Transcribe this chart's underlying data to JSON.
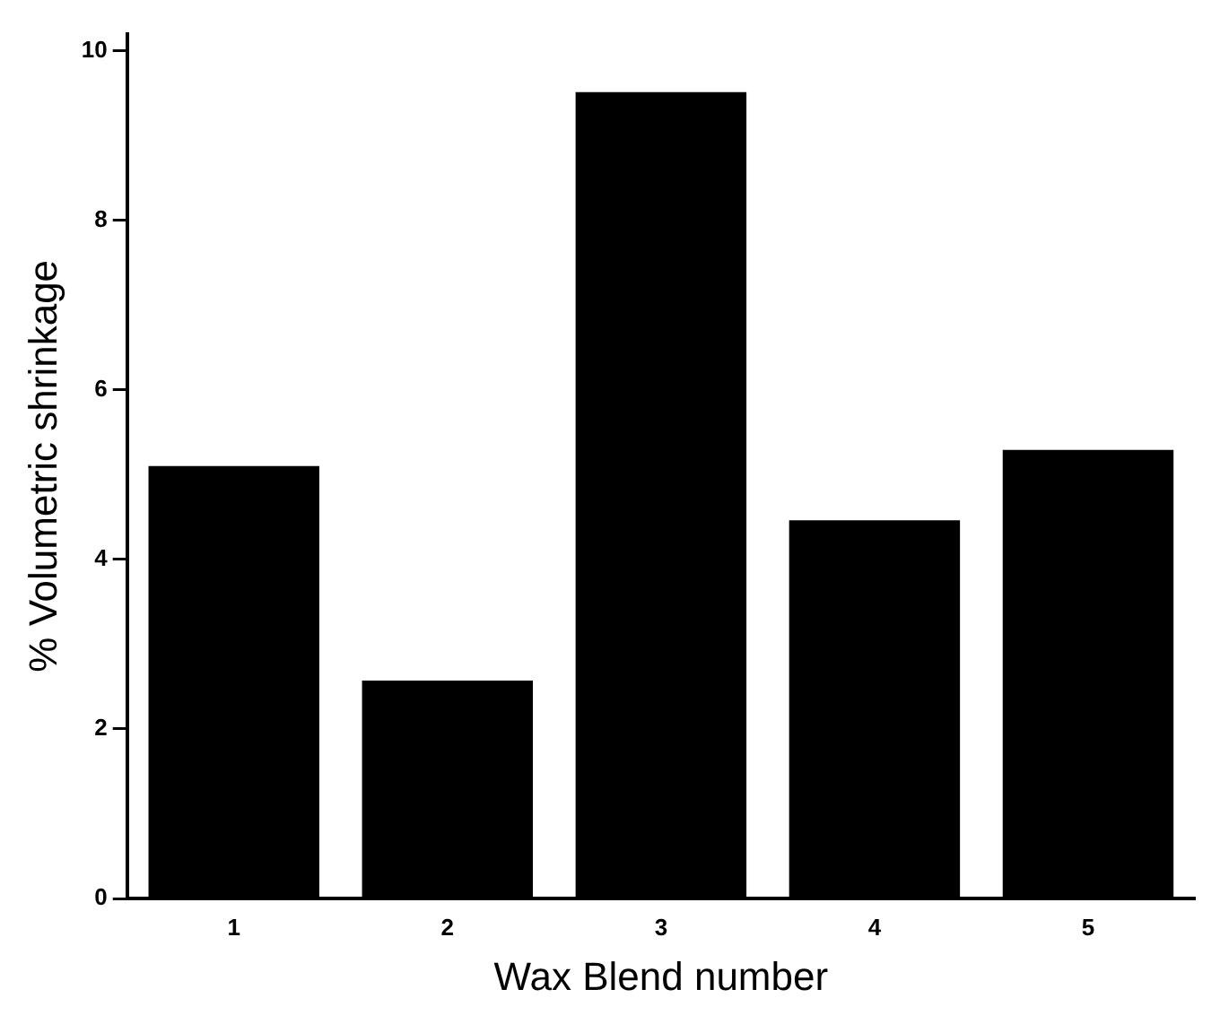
{
  "chart_data": {
    "type": "bar",
    "xlabel": "Wax Blend number",
    "ylabel": "% Volumetric shrinkage",
    "categories": [
      "1",
      "2",
      "3",
      "4",
      "5"
    ],
    "values": [
      5.1,
      2.57,
      9.51,
      4.46,
      5.29
    ],
    "color": "#000000",
    "ylim": [
      0,
      10.2
    ],
    "yticks": [
      0,
      2,
      4,
      6,
      8,
      10
    ],
    "grid": false,
    "legend": false
  }
}
